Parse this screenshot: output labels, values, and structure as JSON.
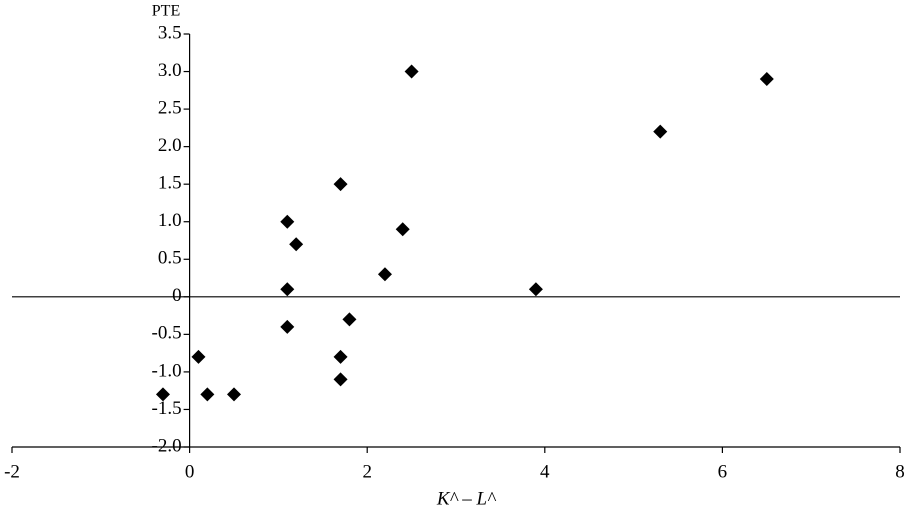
{
  "chart_data": {
    "type": "scatter",
    "y_label": "PTE",
    "x_label": "K^ – L^",
    "x": [
      -0.3,
      0.1,
      0.2,
      0.5,
      1.1,
      1.2,
      1.1,
      1.1,
      1.7,
      1.7,
      1.7,
      1.8,
      2.2,
      2.4,
      2.5,
      3.9,
      5.3,
      6.5
    ],
    "values": [
      -1.3,
      -0.8,
      -1.3,
      -1.3,
      1.0,
      0.7,
      0.1,
      -0.4,
      1.5,
      -0.8,
      -1.1,
      -0.3,
      0.3,
      0.9,
      3.0,
      0.1,
      2.2,
      2.9
    ],
    "color": "#000000",
    "xlim": [
      -2,
      8
    ],
    "xticks": [
      -2,
      0,
      2,
      4,
      6,
      8
    ],
    "ylim": [
      -2,
      3.5
    ],
    "yticks": [
      {
        "value": -2,
        "label": "-2.0"
      },
      -1.5,
      {
        "value": -1,
        "label": "-1.0"
      },
      -0.5,
      0,
      0.5,
      {
        "value": 1,
        "label": "1.0"
      },
      1.5,
      {
        "value": 2,
        "label": "2.0"
      },
      2.5,
      {
        "value": 3,
        "label": "3.0"
      },
      3.5
    ]
  }
}
